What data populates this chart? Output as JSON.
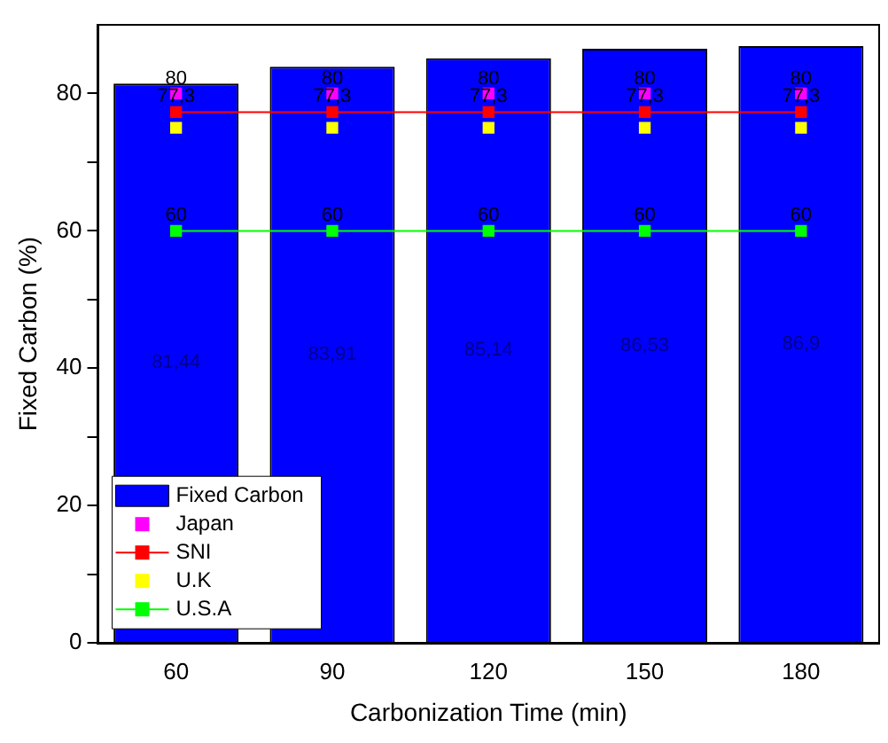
{
  "chart_data": {
    "type": "bar",
    "xlabel": "Carbonization Time (min)",
    "ylabel": "Fixed Carbon (%)",
    "categories": [
      "60",
      "90",
      "120",
      "150",
      "180"
    ],
    "ylim": [
      0,
      90
    ],
    "yticks": [
      0,
      {
        "value": 10,
        "label": null
      },
      20,
      {
        "value": 30,
        "label": null
      },
      40,
      {
        "value": 50,
        "label": null
      },
      60,
      {
        "value": 70,
        "label": null
      },
      80
    ],
    "grid": false,
    "legend": "bottom left",
    "data_labels": true,
    "series": [
      {
        "name": "Fixed Carbon",
        "type": "bar",
        "color": "#0000ff",
        "values": [
          81.44,
          83.91,
          85.14,
          86.53,
          86.9
        ],
        "value_labels": [
          "81,44",
          "83,91",
          "85,14",
          "86,53",
          "86,9"
        ]
      },
      {
        "name": "Japan",
        "type": "scatter",
        "color": "#ff00ff",
        "marker": "square",
        "values": [
          80,
          80,
          80,
          80,
          80
        ],
        "value_labels": [
          "80",
          "80",
          "80",
          "80",
          "80"
        ]
      },
      {
        "name": "SNI",
        "type": "line",
        "color": "#ff0000",
        "marker": "square",
        "line_style": "solid",
        "values": [
          77.3,
          77.3,
          77.3,
          77.3,
          77.3
        ],
        "value_labels": [
          "77,3",
          "77,3",
          "77,3",
          "77,3",
          "77,3"
        ]
      },
      {
        "name": "U.K",
        "type": "scatter",
        "color": "#ffff00",
        "marker": "square",
        "values": [
          75,
          75,
          75,
          75,
          75
        ],
        "value_labels": [
          null,
          null,
          null,
          null,
          null
        ]
      },
      {
        "name": "U.S.A",
        "type": "line",
        "color": "#00ff00",
        "marker": "square",
        "line_style": "solid",
        "values": [
          60,
          60,
          60,
          60,
          60
        ],
        "value_labels": [
          "60",
          "60",
          "60",
          "60",
          "60"
        ]
      }
    ]
  }
}
